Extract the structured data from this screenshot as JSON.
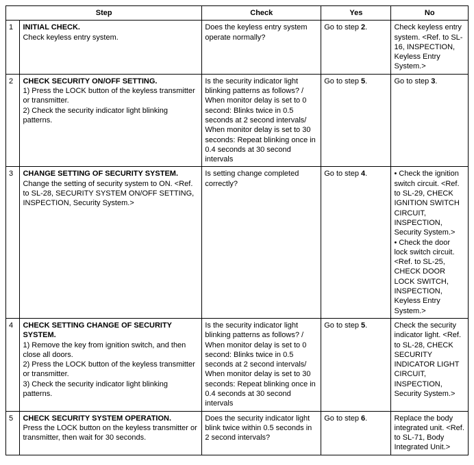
{
  "headers": {
    "step": "Step",
    "check": "Check",
    "yes": "Yes",
    "no": "No"
  },
  "rows": [
    {
      "num": "1",
      "title": "INITIAL CHECK.",
      "body": "Check keyless entry system.",
      "check": "Does the keyless entry system operate normally?",
      "yes_pre": "Go to step ",
      "yes_bold": "2",
      "yes_post": ".",
      "no": "Check keyless entry system. <Ref. to SL-16, INSPECTION, Keyless Entry System.>"
    },
    {
      "num": "2",
      "title": "CHECK SECURITY ON/OFF SETTING.",
      "body": "1)   Press the LOCK button of the keyless transmitter or transmitter.\n2)   Check the security indicator light blinking patterns.",
      "check": "Is the security indicator light blinking patterns as follows? / When monitor delay is set to 0 second: Blinks twice in 0.5 seconds at 2 second intervals/ When monitor delay is set to 30 seconds: Repeat blinking once in 0.4 seconds at 30 second intervals",
      "yes_pre": "Go to step ",
      "yes_bold": "5",
      "yes_post": ".",
      "no_pre": "Go to step ",
      "no_bold": "3",
      "no_post": "."
    },
    {
      "num": "3",
      "title": "CHANGE SETTING OF SECURITY SYSTEM.",
      "body": "Change the setting of security system to ON. <Ref. to SL-28, SECURITY SYSTEM ON/OFF SETTING, INSPECTION, Security System.>",
      "check": "Is setting change completed correctly?",
      "yes_pre": "Go to step ",
      "yes_bold": "4",
      "yes_post": ".",
      "no": "•  Check the ignition switch circuit. <Ref. to SL-29, CHECK IGNITION SWITCH CIRCUIT, INSPECTION, Security System.>\n•  Check the door lock switch circuit. <Ref. to SL-25, CHECK DOOR LOCK SWITCH, INSPECTION, Keyless Entry System.>"
    },
    {
      "num": "4",
      "title": "CHECK SETTING CHANGE OF SECURITY SYSTEM.",
      "body": "1)   Remove the key from ignition switch, and then close all doors.\n2)   Press the LOCK button of the keyless transmitter or transmitter.\n3)   Check the security indicator light blinking patterns.",
      "check": "Is the security indicator light blinking patterns as follows? / When monitor delay is set to 0 second: Blinks twice in 0.5 seconds at 2 second intervals/ When monitor delay is set to 30 seconds: Repeat blinking once in 0.4 seconds at 30 second intervals",
      "yes_pre": "Go to step ",
      "yes_bold": "5",
      "yes_post": ".",
      "no": "Check the security indicator light. <Ref. to SL-28, CHECK SECURITY INDICATOR LIGHT CIRCUIT, INSPECTION, Security System.>"
    },
    {
      "num": "5",
      "title": "CHECK SECURITY SYSTEM OPERATION.",
      "body": "Press the LOCK button on the keyless transmitter or transmitter, then wait for 30 seconds.",
      "check": "Does the security indicator light blink twice within 0.5 seconds in 2 second intervals?",
      "yes_pre": "Go to step ",
      "yes_bold": "6",
      "yes_post": ".",
      "no": "Replace the body integrated unit. <Ref. to SL-71, Body Integrated Unit.>"
    }
  ]
}
